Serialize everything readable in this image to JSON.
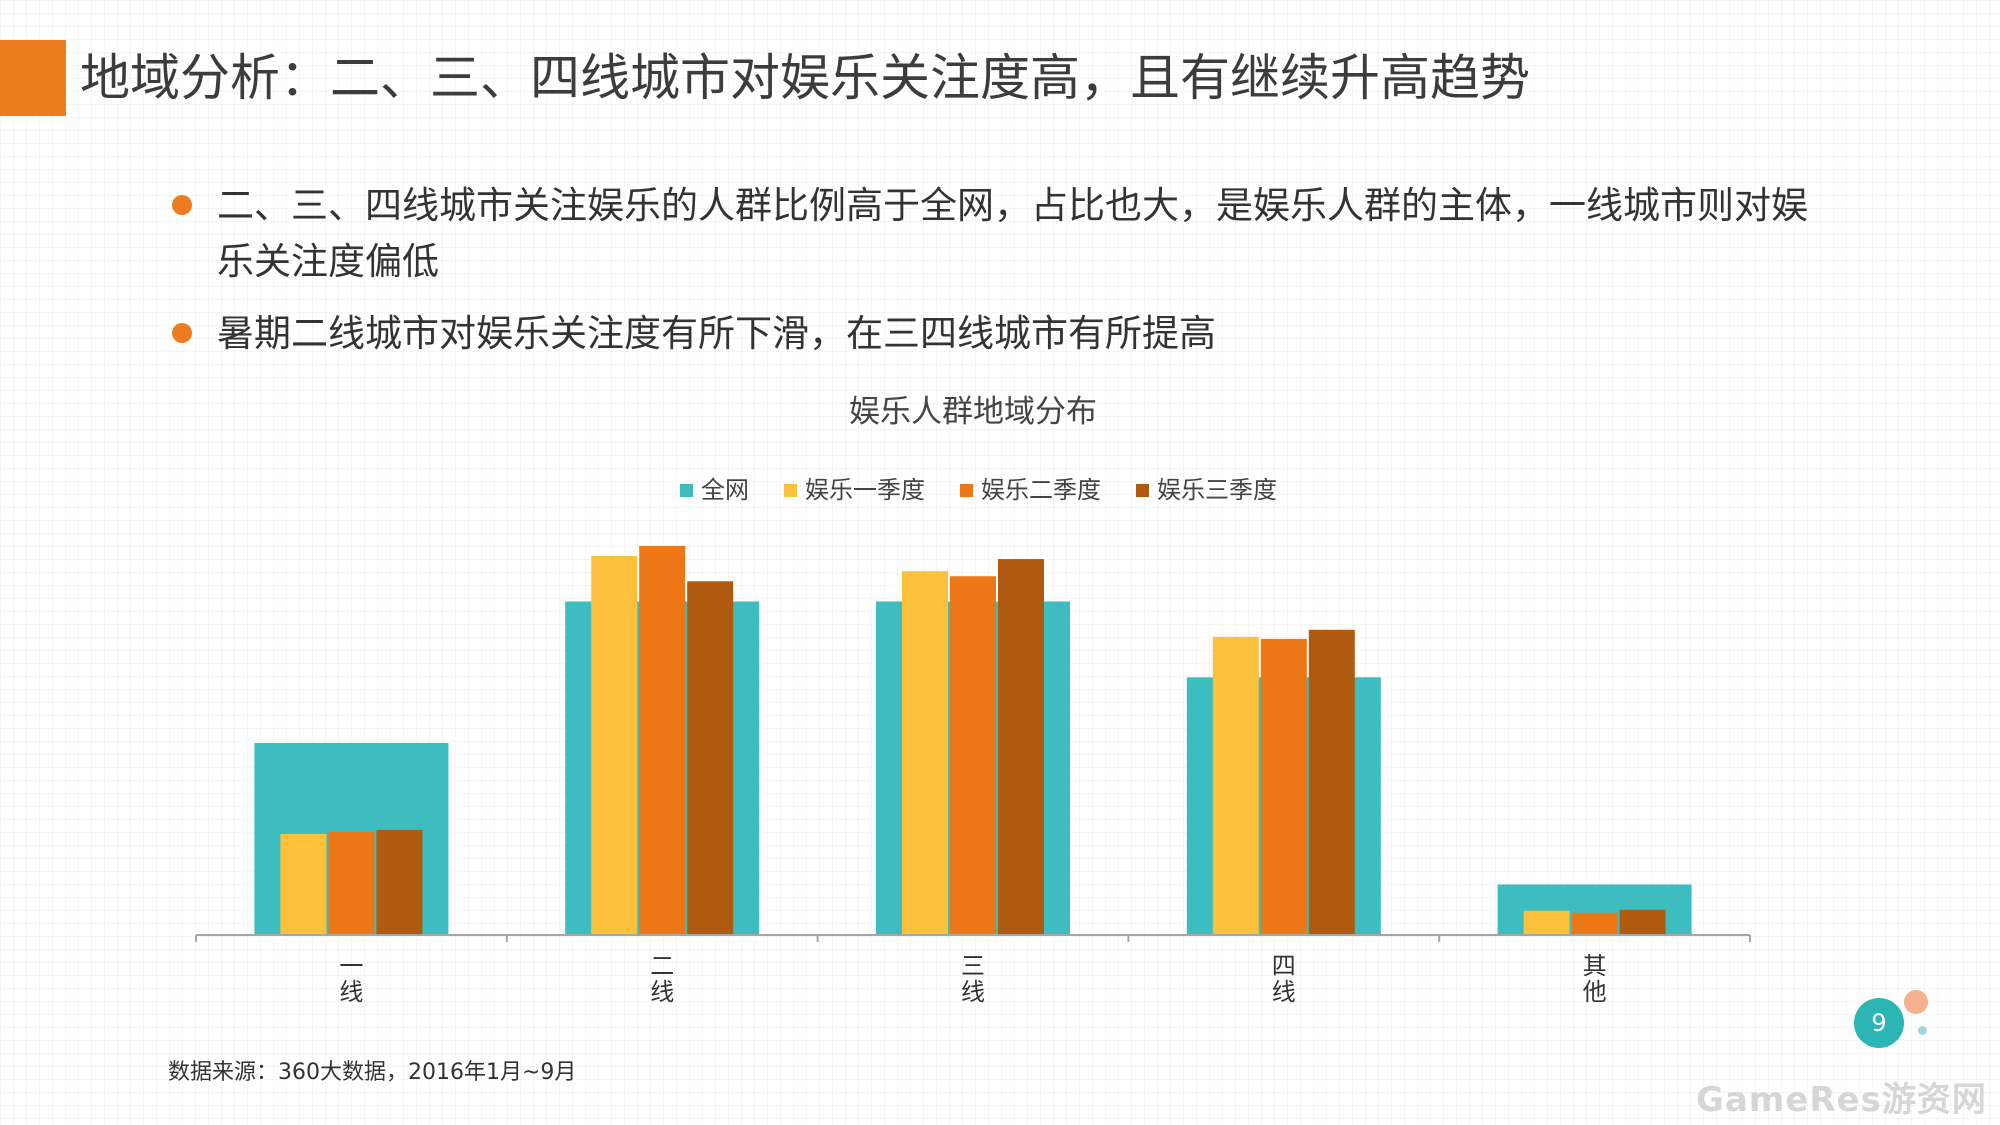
{
  "page": {
    "title": "地域分析：二、三、四线城市对娱乐关注度高，且有继续升高趋势",
    "bullets": [
      "二、三、四线城市关注娱乐的人群比例高于全网，占比也大，是娱乐人群的主体，一线城市则对娱乐关注度偏低",
      "暑期二线城市对娱乐关注度有所下滑，在三四线城市有所提高"
    ],
    "source": "数据来源：360大数据，2016年1月~9月",
    "page_number": "9",
    "watermark": "GameRes游资网"
  },
  "colors": {
    "accent": "#ee7d1f",
    "bullet": "#ee7d1f",
    "page_badge": "#2bb5b5"
  },
  "chart_data": {
    "type": "bar",
    "title": "娱乐人群地域分布",
    "categories": [
      "一线",
      "二线",
      "三线",
      "四线",
      "其他"
    ],
    "series": [
      {
        "name": "全网",
        "color": "#3dbdbf",
        "values": [
          19,
          33,
          33,
          25.5,
          5
        ]
      },
      {
        "name": "娱乐一季度",
        "color": "#fbc13b",
        "values": [
          10,
          37.5,
          36,
          29.5,
          2.4
        ]
      },
      {
        "name": "娱乐二季度",
        "color": "#ed7617",
        "values": [
          10.2,
          38.5,
          35.5,
          29.3,
          2.2
        ]
      },
      {
        "name": "娱乐三季度",
        "color": "#b05a10",
        "values": [
          10.4,
          35,
          37.2,
          30.2,
          2.5
        ]
      }
    ],
    "background_series": "全网",
    "ylim": [
      0,
      40
    ],
    "legend": "top-center",
    "grid": false,
    "axis_ticks_visible": false
  }
}
